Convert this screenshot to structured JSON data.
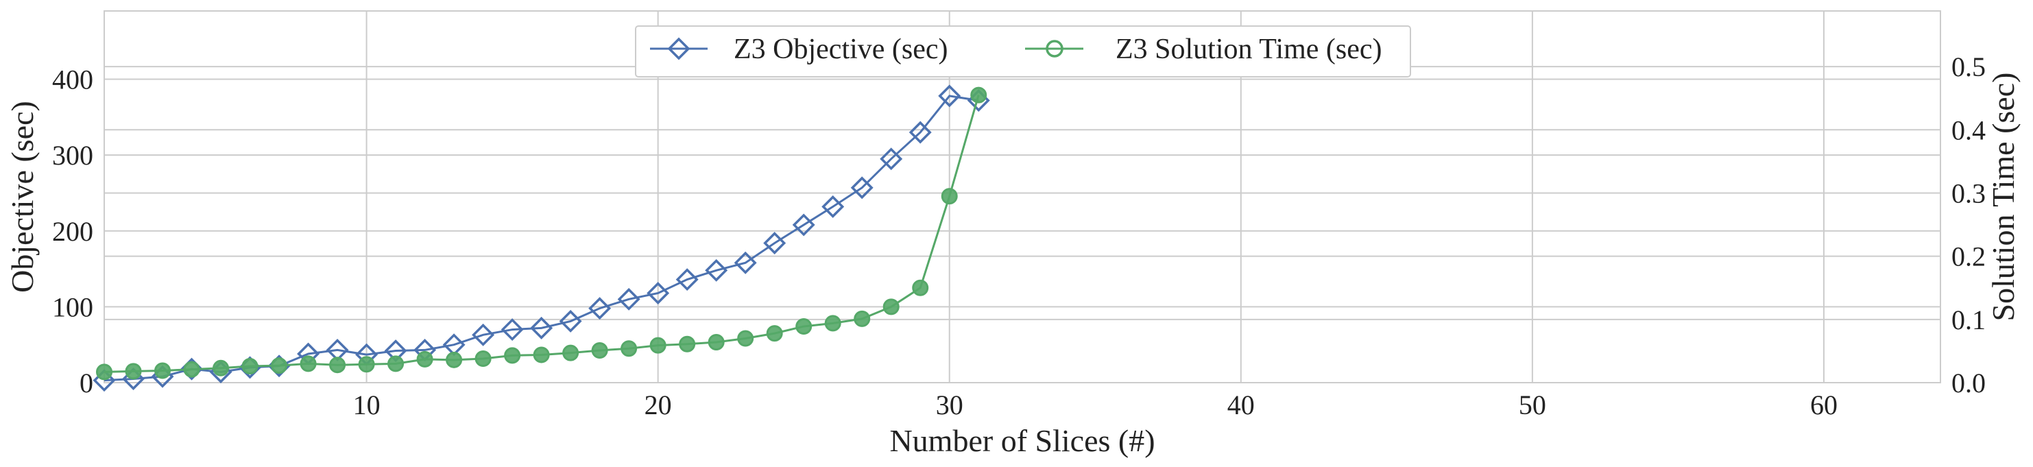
{
  "chart_data": {
    "type": "line",
    "xlabel": "Number of Slices (#)",
    "ylabel": "Objective (sec)",
    "y2label": "Solution Time (sec)",
    "xlim": [
      1,
      64
    ],
    "ylim": [
      0,
      490
    ],
    "y2lim": [
      0,
      0.588
    ],
    "xticks": [
      10,
      20,
      30,
      40,
      50,
      60
    ],
    "yticks": [
      0,
      100,
      200,
      300,
      400
    ],
    "y2ticks": [
      "0.0",
      "0.1",
      "0.2",
      "0.3",
      "0.4",
      "0.5"
    ],
    "grid": true,
    "legend_position": "top-center",
    "series": [
      {
        "name": "Z3 Objective (sec)",
        "axis": "left",
        "color": "#4c72b0",
        "marker": "diamond",
        "x": [
          1,
          2,
          3,
          4,
          5,
          6,
          7,
          8,
          9,
          10,
          11,
          12,
          13,
          14,
          15,
          16,
          17,
          18,
          19,
          20,
          21,
          22,
          23,
          24,
          25,
          26,
          27,
          28,
          29,
          30,
          31
        ],
        "y": [
          3,
          5,
          8,
          18,
          14,
          20,
          22,
          38,
          43,
          37,
          42,
          43,
          50,
          63,
          70,
          72,
          81,
          98,
          110,
          118,
          136,
          148,
          158,
          184,
          208,
          232,
          257,
          295,
          330,
          378,
          372
        ]
      },
      {
        "name": "Z3 Solution Time (sec)",
        "axis": "right",
        "color": "#55a868",
        "marker": "circle",
        "x": [
          1,
          2,
          3,
          4,
          5,
          6,
          7,
          8,
          9,
          10,
          11,
          12,
          13,
          14,
          15,
          16,
          17,
          18,
          19,
          20,
          21,
          22,
          23,
          24,
          25,
          26,
          27,
          28,
          29,
          30,
          31
        ],
        "y": [
          0.017,
          0.018,
          0.019,
          0.021,
          0.023,
          0.026,
          0.027,
          0.03,
          0.028,
          0.029,
          0.03,
          0.037,
          0.036,
          0.038,
          0.043,
          0.044,
          0.047,
          0.051,
          0.054,
          0.059,
          0.061,
          0.064,
          0.07,
          0.078,
          0.089,
          0.094,
          0.101,
          0.12,
          0.15,
          0.295,
          0.455
        ]
      }
    ]
  }
}
